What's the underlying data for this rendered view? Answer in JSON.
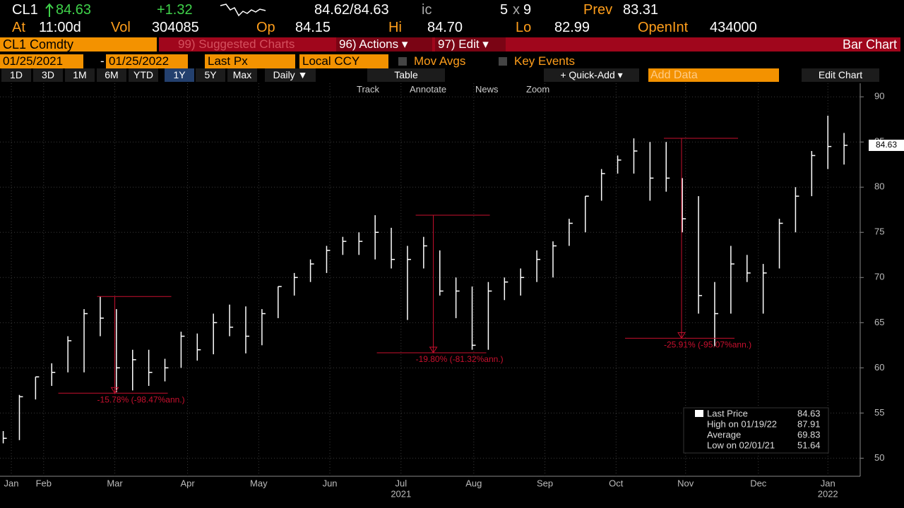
{
  "header": {
    "ticker": "CL1",
    "last": "84.63",
    "change": "+1.32",
    "bid_ask": "84.62/84.63",
    "source": "ic",
    "size_bid": "5",
    "size_x": "x",
    "size_ask": "9",
    "prev_label": "Prev",
    "prev": "83.31",
    "at_label": "At",
    "time": "11:00d",
    "vol_label": "Vol",
    "vol": "304085",
    "op_label": "Op",
    "op": "84.15",
    "hi_label": "Hi",
    "hi": "84.70",
    "lo_label": "Lo",
    "lo": "82.99",
    "oi_label": "OpenInt",
    "oi": "434000"
  },
  "toolbar": {
    "security": "CL1 Comdty",
    "suggested": "99) Suggested Charts",
    "actions": "96) Actions ▾",
    "edit": "97) Edit ▾",
    "chart_type": "Bar Chart",
    "start_date": "01/25/2021",
    "dash": "-",
    "end_date": "01/25/2022",
    "field": "Last Px",
    "currency": "Local CCY",
    "mov_avgs": "Mov Avgs",
    "key_events": "Key Events",
    "ranges": [
      "1D",
      "3D",
      "1M",
      "6M",
      "YTD",
      "1Y",
      "5Y",
      "Max"
    ],
    "period": "Daily ▼",
    "table": "Table",
    "quick_add": "+ Quick-Add ▾",
    "add_data": "Add Data",
    "edit_chart": "Edit Chart",
    "tools": [
      "Track",
      "Annotate",
      "News",
      "Zoom"
    ]
  },
  "chart_data": {
    "type": "ohlc",
    "color": "#ffffff",
    "grid": true,
    "x": [
      0,
      1,
      2,
      3,
      4,
      5,
      6,
      7,
      8,
      9,
      10,
      11,
      12,
      13,
      14,
      15,
      16,
      17,
      18,
      19,
      20,
      21,
      22,
      23,
      24,
      25,
      26,
      27,
      28,
      29,
      30,
      31,
      32,
      33,
      34,
      35,
      36,
      37,
      38,
      39,
      40,
      41,
      42,
      43,
      44,
      45,
      46,
      47,
      48,
      49,
      50,
      51,
      52
    ],
    "high": [
      53,
      57,
      59,
      60.5,
      63.5,
      66.5,
      67.9,
      66.5,
      62,
      62,
      61,
      64,
      63.8,
      66,
      67,
      66.8,
      66.5,
      69,
      70.5,
      72,
      73.5,
      74.5,
      75,
      76.9,
      75.5,
      73.5,
      74.5,
      73,
      70,
      69,
      69.5,
      70,
      71,
      73,
      74,
      76.5,
      79,
      82,
      83.5,
      85.4,
      85,
      85,
      81,
      79,
      69.5,
      73.5,
      72.5,
      71.5,
      76.5,
      80,
      84,
      87.91,
      86
    ],
    "low": [
      51.64,
      52,
      56.5,
      58,
      59.5,
      59.5,
      63.5,
      57.3,
      57.5,
      58,
      58.5,
      60,
      60.8,
      61.5,
      63.5,
      61.6,
      62.5,
      65.5,
      68,
      69.5,
      70.5,
      72.5,
      72.5,
      72,
      71,
      65.3,
      71,
      68,
      65.5,
      62,
      62,
      67.5,
      68,
      69.5,
      70,
      73.5,
      75,
      78.5,
      81.5,
      81.5,
      78.5,
      79.5,
      75,
      66,
      62.4,
      66,
      69.5,
      66,
      71,
      75,
      79,
      82,
      82.5
    ],
    "close": [
      52.2,
      56.8,
      59,
      59.5,
      63,
      66,
      65.5,
      60,
      60.9,
      59.5,
      60,
      63.5,
      62,
      65,
      64.5,
      63.5,
      66,
      69,
      70,
      71.5,
      73,
      74,
      74,
      75,
      72,
      72,
      73.5,
      68.5,
      68.5,
      62.5,
      68.5,
      69.5,
      70,
      72,
      73.5,
      76,
      79,
      81.5,
      83,
      84,
      81,
      81,
      76.5,
      68,
      66,
      71.5,
      70.5,
      70.5,
      76,
      79,
      83.5,
      84.5,
      84.63
    ],
    "xlim": [
      -0.2,
      53
    ],
    "ylim": [
      48,
      91.5
    ],
    "yticks": [
      50,
      55,
      60,
      65,
      70,
      75,
      80,
      85,
      90
    ],
    "xticks": [
      {
        "value": 0.5,
        "label": "Jan"
      },
      {
        "value": 2.5,
        "label": "Feb"
      },
      {
        "value": 6.9,
        "label": "Mar"
      },
      {
        "value": 11.4,
        "label": "Apr"
      },
      {
        "value": 15.8,
        "label": "May"
      },
      {
        "value": 20.2,
        "label": "Jun"
      },
      {
        "value": 24.6,
        "label": "Jul"
      },
      {
        "value": 29.1,
        "label": "Aug"
      },
      {
        "value": 33.5,
        "label": "Sep"
      },
      {
        "value": 37.9,
        "label": "Oct"
      },
      {
        "value": 42.2,
        "label": "Nov"
      },
      {
        "value": 46.7,
        "label": "Dec"
      },
      {
        "value": 51,
        "label": "Jan"
      }
    ],
    "years": [
      {
        "value": 24.6,
        "label": "2021"
      },
      {
        "value": 51,
        "label": "2022"
      }
    ],
    "last_price": 84.63,
    "drawdowns": [
      {
        "x": 6.9,
        "from": 67.9,
        "to": 57.2,
        "label": "-15.78% (-98.47%ann.)"
      },
      {
        "x": 26.6,
        "from": 76.9,
        "to": 61.67,
        "label": "-19.80% (-81.32%ann.)"
      },
      {
        "x": 41.95,
        "from": 85.41,
        "to": 63.28,
        "label": "-25.91% (-95.07%ann.)"
      }
    ],
    "legend": [
      {
        "label": "Last Price",
        "value": 84.63
      },
      {
        "label": "High on 01/19/22",
        "value": 87.91
      },
      {
        "label": "Average",
        "value": 69.83
      },
      {
        "label": "Low on 02/01/21",
        "value": 51.64
      }
    ]
  }
}
